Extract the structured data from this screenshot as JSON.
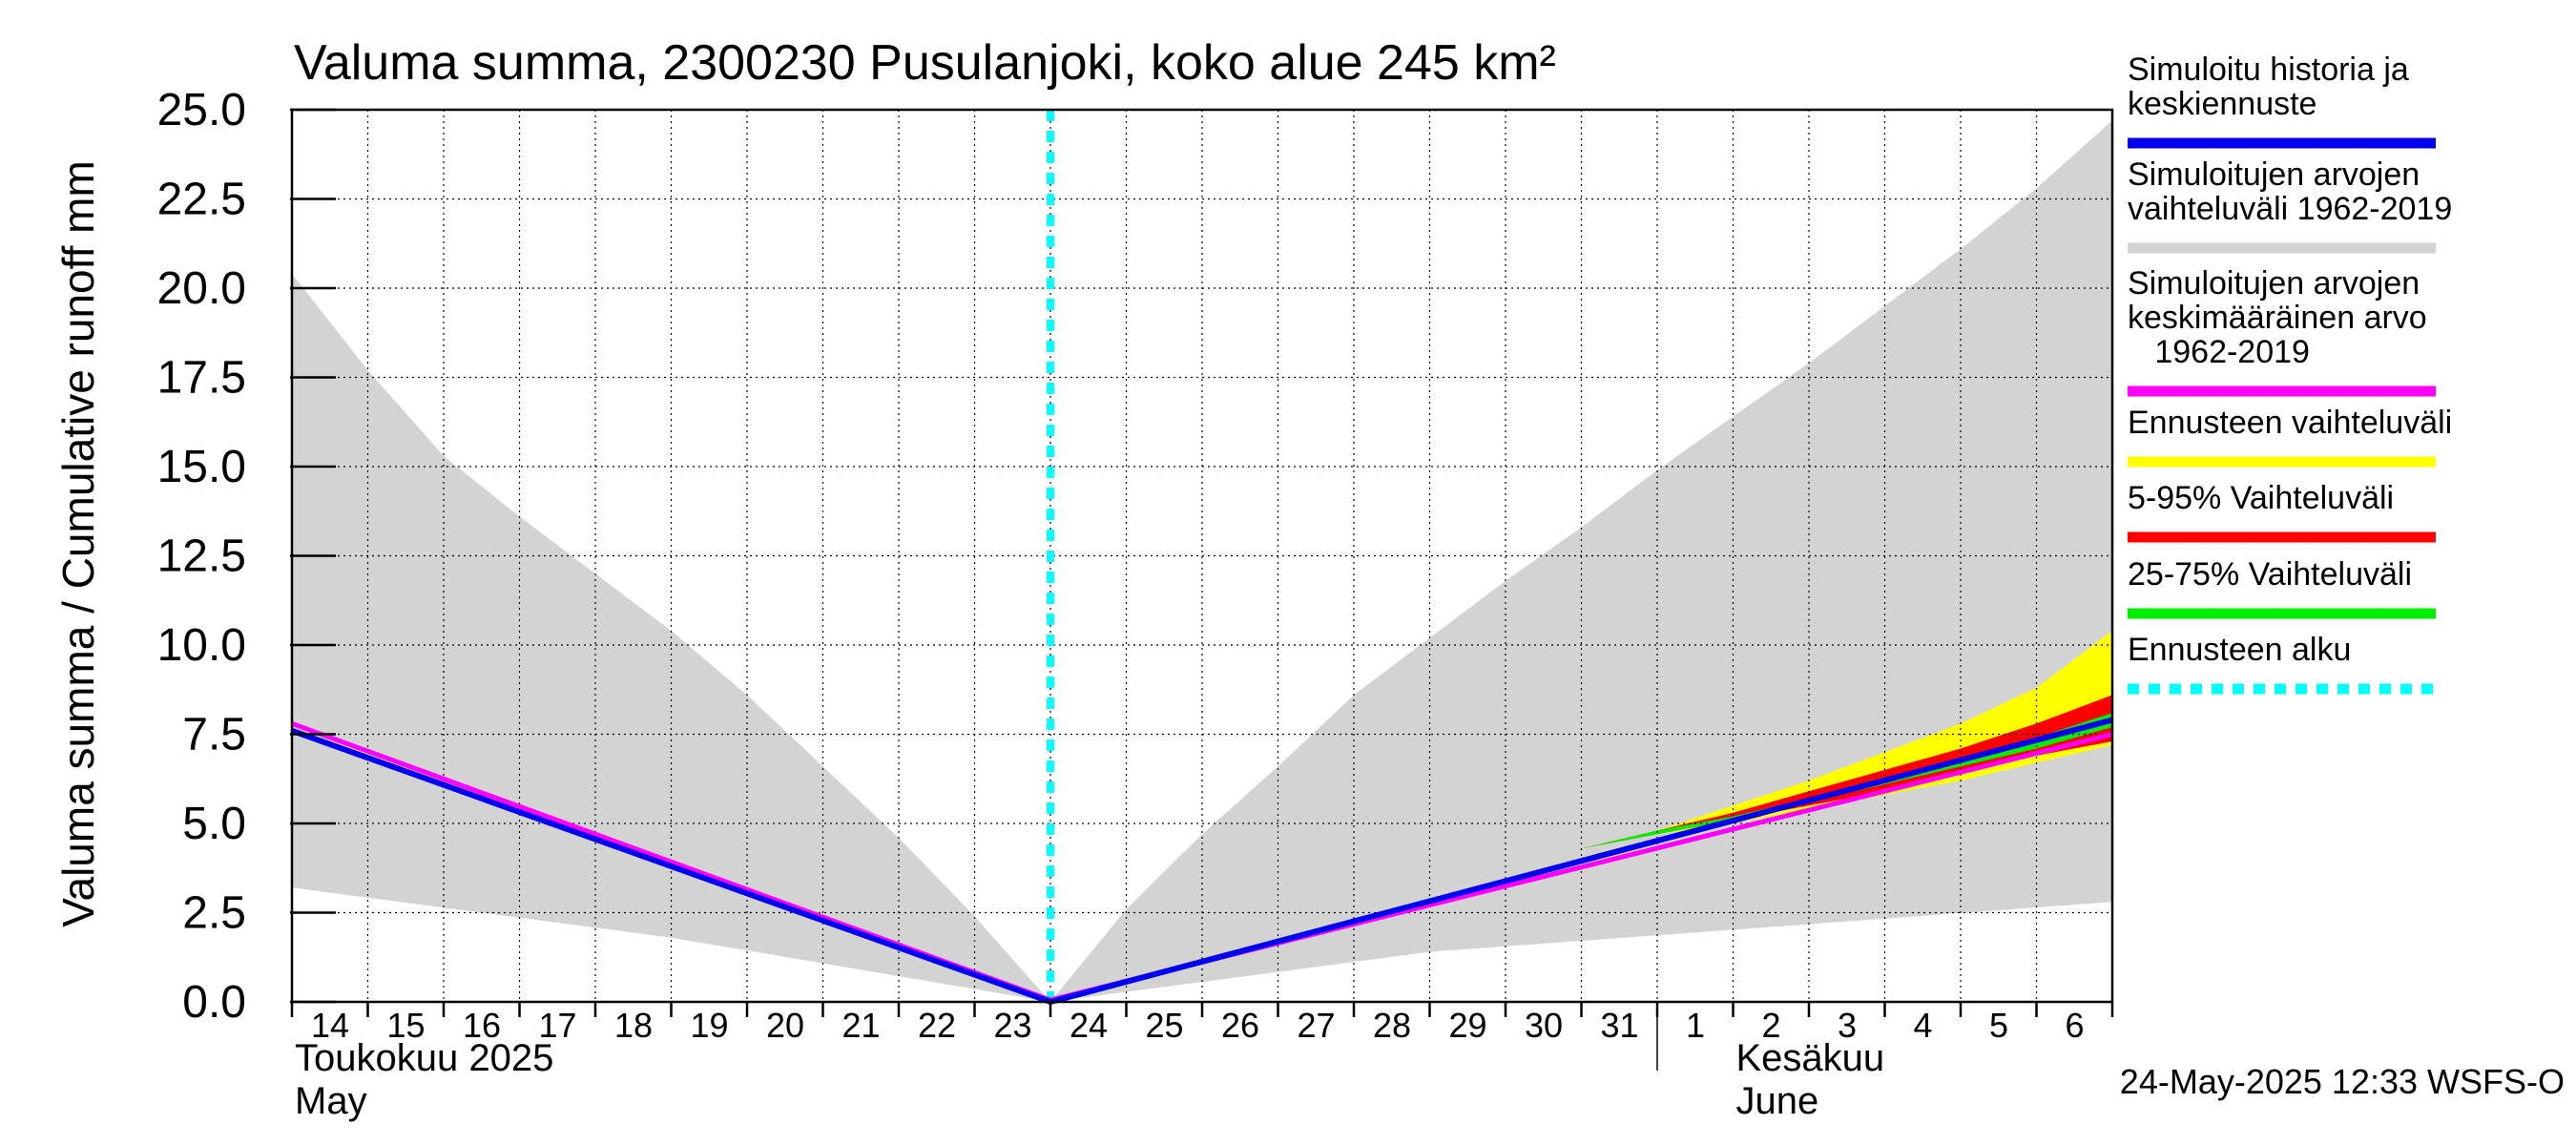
{
  "chart_data": {
    "type": "area",
    "title": "Valuma summa, 2300230 Pusulanjoki, koko alue 245 km²",
    "ylabel": "Valuma summa / Cumulative runoff    mm",
    "ylim": [
      0,
      25
    ],
    "yticks": [
      "0.0",
      "2.5",
      "5.0",
      "7.5",
      "10.0",
      "12.5",
      "15.0",
      "17.5",
      "20.0",
      "22.5",
      "25.0"
    ],
    "grid": true,
    "xlim": [
      "2025-05-14",
      "2025-06-07"
    ],
    "x_tick_labels": [
      {
        "date": "2025-05-14",
        "label": "14"
      },
      {
        "date": "2025-05-15",
        "label": "15"
      },
      {
        "date": "2025-05-16",
        "label": "16"
      },
      {
        "date": "2025-05-17",
        "label": "17"
      },
      {
        "date": "2025-05-18",
        "label": "18"
      },
      {
        "date": "2025-05-19",
        "label": "19"
      },
      {
        "date": "2025-05-20",
        "label": "20"
      },
      {
        "date": "2025-05-21",
        "label": "21"
      },
      {
        "date": "2025-05-22",
        "label": "22"
      },
      {
        "date": "2025-05-23",
        "label": "23"
      },
      {
        "date": "2025-05-24",
        "label": "24"
      },
      {
        "date": "2025-05-25",
        "label": "25"
      },
      {
        "date": "2025-05-26",
        "label": "26"
      },
      {
        "date": "2025-05-27",
        "label": "27"
      },
      {
        "date": "2025-05-28",
        "label": "28"
      },
      {
        "date": "2025-05-29",
        "label": "29"
      },
      {
        "date": "2025-05-30",
        "label": "30"
      },
      {
        "date": "2025-05-31",
        "label": "31"
      },
      {
        "date": "2025-06-01",
        "label": "1"
      },
      {
        "date": "2025-06-02",
        "label": "2"
      },
      {
        "date": "2025-06-03",
        "label": "3"
      },
      {
        "date": "2025-06-04",
        "label": "4"
      },
      {
        "date": "2025-06-05",
        "label": "5"
      },
      {
        "date": "2025-06-06",
        "label": "6"
      }
    ],
    "month_labels": [
      {
        "date": "2025-05-14",
        "line1": "Toukokuu  2025",
        "line2": "May"
      },
      {
        "date": "2025-06-02",
        "line1": "Kesäkuu",
        "line2": "June"
      }
    ],
    "month_boundary": "2025-06-01",
    "forecast_start": "2025-05-24",
    "legend_position": "right",
    "legend": [
      {
        "key": "history",
        "label": [
          "Simuloitu historia ja",
          "keskiennuste"
        ],
        "color": "#0000ee",
        "style": "solid"
      },
      {
        "key": "range",
        "label": [
          "Simuloitujen arvojen",
          "vaihteluväli 1962-2019"
        ],
        "color": "#d3d3d3",
        "style": "solid"
      },
      {
        "key": "mean",
        "label": [
          "Simuloitujen arvojen",
          "keskimääräinen arvo",
          "   1962-2019"
        ],
        "color": "#ff00ff",
        "style": "solid"
      },
      {
        "key": "fc_range",
        "label": [
          "Ennusteen vaihteluväli"
        ],
        "color": "#ffff00",
        "style": "solid"
      },
      {
        "key": "p5_95",
        "label": [
          "5-95% Vaihteluväli"
        ],
        "color": "#ff0000",
        "style": "solid"
      },
      {
        "key": "p25_75",
        "label": [
          "25-75% Vaihteluväli"
        ],
        "color": "#00ee00",
        "style": "solid"
      },
      {
        "key": "fc_start",
        "label": [
          "Ennusteen alku"
        ],
        "color": "#00ffff",
        "style": "dashed"
      }
    ],
    "series": {
      "hist_range_upper": {
        "x": [
          "2025-05-14",
          "2025-05-15",
          "2025-05-16",
          "2025-05-17",
          "2025-05-18",
          "2025-05-19",
          "2025-05-20",
          "2025-05-21",
          "2025-05-22",
          "2025-05-23",
          "2025-05-24",
          "2025-05-25",
          "2025-05-26",
          "2025-05-27",
          "2025-05-28",
          "2025-05-29",
          "2025-05-30",
          "2025-05-31",
          "2025-06-01",
          "2025-06-02",
          "2025-06-03",
          "2025-06-04",
          "2025-06-05",
          "2025-06-06",
          "2025-06-07"
        ],
        "y": [
          20.4,
          17.7,
          15.3,
          13.6,
          12.0,
          10.4,
          8.6,
          6.6,
          4.6,
          2.4,
          0.0,
          2.6,
          4.7,
          6.6,
          8.6,
          10.2,
          11.8,
          13.3,
          14.9,
          16.4,
          17.9,
          19.5,
          21.1,
          22.8,
          24.7
        ]
      },
      "hist_range_lower": {
        "x": [
          "2025-05-14",
          "2025-05-19",
          "2025-05-24",
          "2025-05-29",
          "2025-06-07"
        ],
        "y": [
          3.2,
          1.8,
          0.0,
          1.4,
          2.8
        ]
      },
      "forecast_range": {
        "x": [
          "2025-05-31",
          "2025-06-01",
          "2025-06-02",
          "2025-06-03",
          "2025-06-04",
          "2025-06-05",
          "2025-06-06",
          "2025-06-07"
        ],
        "upper": [
          4.3,
          4.8,
          5.5,
          6.2,
          7.0,
          7.8,
          8.8,
          10.4
        ],
        "lower": [
          4.3,
          4.7,
          5.0,
          5.4,
          5.8,
          6.2,
          6.7,
          7.2
        ]
      },
      "p5_95": {
        "x": [
          "2025-05-31",
          "2025-06-01",
          "2025-06-02",
          "2025-06-03",
          "2025-06-04",
          "2025-06-05",
          "2025-06-06",
          "2025-06-07"
        ],
        "upper": [
          4.3,
          4.8,
          5.3,
          5.9,
          6.5,
          7.1,
          7.8,
          8.6
        ],
        "lower": [
          4.3,
          4.7,
          5.1,
          5.5,
          5.9,
          6.4,
          6.9,
          7.3
        ]
      },
      "p25_75": {
        "x": [
          "2025-05-31",
          "2025-06-01",
          "2025-06-02",
          "2025-06-03",
          "2025-06-04",
          "2025-06-05",
          "2025-06-06",
          "2025-06-07"
        ],
        "upper": [
          4.3,
          4.8,
          5.2,
          5.7,
          6.2,
          6.8,
          7.4,
          8.1
        ],
        "lower": [
          4.3,
          4.7,
          5.1,
          5.6,
          6.1,
          6.6,
          7.1,
          7.7
        ]
      },
      "history_mean_forecast": {
        "x": [
          "2025-05-14",
          "2025-05-24",
          "2025-06-07"
        ],
        "y": [
          7.6,
          0.0,
          7.9
        ]
      },
      "simulated_mean": {
        "x": [
          "2025-05-14",
          "2025-05-24",
          "2025-06-07"
        ],
        "y": [
          7.8,
          0.05,
          7.5
        ]
      }
    }
  },
  "footer": {
    "timestamp": "24-May-2025 12:33 WSFS-O"
  }
}
